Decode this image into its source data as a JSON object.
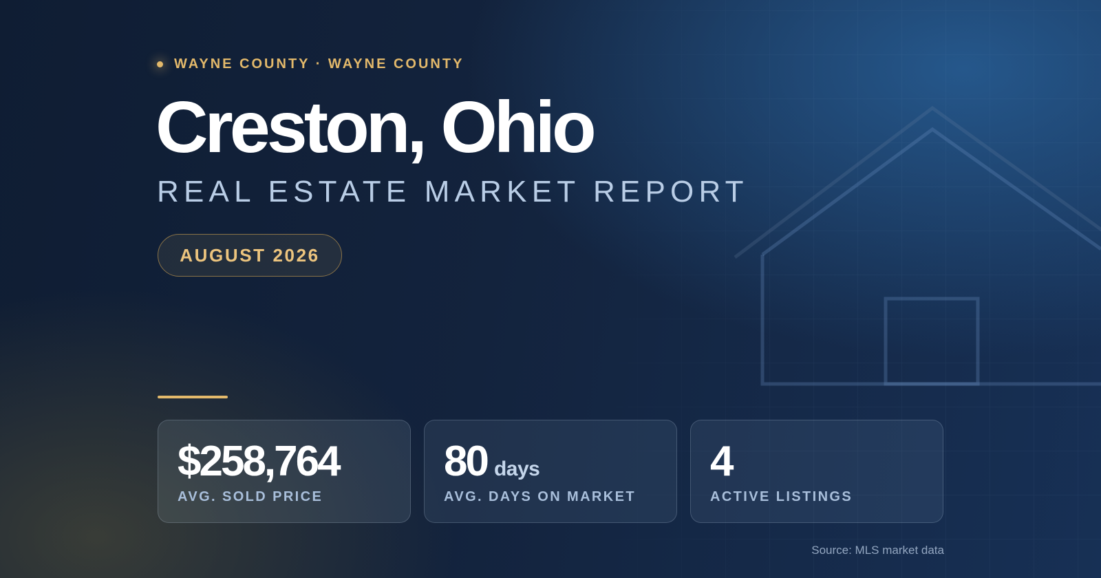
{
  "header": {
    "eyebrow": "WAYNE COUNTY · WAYNE COUNTY",
    "title": "Creston, Ohio",
    "subtitle": "REAL ESTATE MARKET REPORT",
    "date": "AUGUST 2026"
  },
  "stats": [
    {
      "value": "$258,764",
      "unit": "",
      "label": "AVG. SOLD PRICE"
    },
    {
      "value": "80",
      "unit": "days",
      "label": "AVG. DAYS ON MARKET"
    },
    {
      "value": "4",
      "unit": "",
      "label": "ACTIVE LISTINGS"
    }
  ],
  "footer": {
    "source": "Source: MLS market data"
  },
  "icons": {
    "eyebrow": "dot-icon",
    "background": "house-outline-icon"
  },
  "colors": {
    "accent": "#e3b96b",
    "subtitle": "#b9cde6",
    "background": "#13233d"
  }
}
